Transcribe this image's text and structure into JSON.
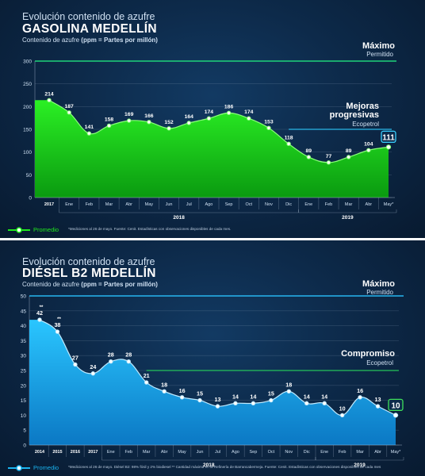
{
  "colors": {
    "gasoline": "#1fe81c",
    "diesel": "#1ab4f0",
    "max_line": "#1fd47a",
    "target_line": "#2ab6e6",
    "diesel_max_line": "#27b6f0",
    "diesel_target_line": "#25c35a"
  },
  "panel1": {
    "eyebrow": "Evolución contenido de azufre",
    "headline": "GASOLINA MEDELLÍN",
    "subhead_prefix": "Contenido de azufre ",
    "subhead_bold": "(ppm = Partes por millón)",
    "max_label": "Máximo",
    "max_sub": "Permitido",
    "annot_title_1": "Mejoras",
    "annot_title_2": "progresivas",
    "annot_sub": "Ecopetrol",
    "legend_label": "Promedio",
    "note": "*Mediciones al 26 de mayo.  Fuente: Cenit. Estadísticas con observaciones disponibles de cada mes."
  },
  "panel2": {
    "eyebrow": "Evolución contenido de azufre",
    "headline": "DIÉSEL B2 MEDELLÍN",
    "subhead_prefix": "Contenido de azufre ",
    "subhead_bold": "(ppm = Partes por millón)",
    "max_label": "Máximo",
    "max_sub": "Permitido",
    "annot_title": "Compromiso",
    "annot_sub": "Ecopetrol",
    "legend_label": "Promedio",
    "note": "*Mediciones al 26 de mayo.  Diésel B2: 98% fósil y 2% biodiesel  ** Cantidad máxima en la Refinería de Barrancabermeja. Fuente: Cenit. Estadísticas con observaciones disponibles de cada mes"
  },
  "chart_data": [
    {
      "type": "area",
      "title": "GASOLINA MEDELLÍN",
      "ylabel": "Contenido de azufre (ppm = Partes por millón)",
      "ylim": [
        0,
        300
      ],
      "yticks": [
        "0",
        "50",
        "100",
        "150",
        "200",
        "250",
        "300"
      ],
      "categories": [
        "2017",
        "Ene",
        "Feb",
        "Mar",
        "Abr",
        "May",
        "Jun",
        "Jul",
        "Ago",
        "Sep",
        "Oct",
        "Nov",
        "Dic",
        "Ene",
        "Feb",
        "Mar",
        "Abr",
        "May*"
      ],
      "year_groups": [
        {
          "label": "2018",
          "from": 1,
          "to": 12
        },
        {
          "label": "2019",
          "from": 13,
          "to": 17
        }
      ],
      "series": [
        {
          "name": "Promedio",
          "values": [
            214,
            187,
            141,
            158,
            169,
            166,
            152,
            164,
            174,
            186,
            174,
            153,
            118,
            89,
            77,
            89,
            104,
            111
          ]
        }
      ],
      "value_labels": [
        "214",
        "187",
        "141",
        "158",
        "169",
        "166",
        "152",
        "164",
        "174",
        "186",
        "174",
        "153",
        "118",
        "89",
        "77",
        "89",
        "104",
        "111"
      ],
      "reference_lines": [
        {
          "label": "Máximo Permitido",
          "value": 300,
          "from_index": 0,
          "to_index": 17
        },
        {
          "label": "Mejoras progresivas Ecopetrol",
          "value": 150,
          "from_index": 12,
          "to_index": 17
        }
      ],
      "highlight_last": true,
      "grid": true
    },
    {
      "type": "area",
      "title": "DIÉSEL B2 MEDELLÍN",
      "ylabel": "Contenido de azufre (ppm = Partes por millón)",
      "ylim": [
        0,
        50
      ],
      "yticks": [
        "0",
        "5",
        "10",
        "15",
        "20",
        "25",
        "30",
        "35",
        "40",
        "45",
        "50"
      ],
      "categories": [
        "2014",
        "2015",
        "2016",
        "2017",
        "Ene",
        "Feb",
        "Mar",
        "Abr",
        "May",
        "Jun",
        "Jul",
        "Ago",
        "Sep",
        "Oct",
        "Nov",
        "Dic",
        "Ene",
        "Feb",
        "Mar",
        "Abr",
        "May*"
      ],
      "year_groups": [
        {
          "label": "2018",
          "from": 4,
          "to": 15
        },
        {
          "label": "2019",
          "from": 16,
          "to": 20
        }
      ],
      "series": [
        {
          "name": "Promedio",
          "values": [
            42,
            38,
            27,
            24,
            28,
            28,
            21,
            18,
            16,
            15,
            13,
            14,
            14,
            15,
            18,
            14,
            14,
            10,
            16,
            13,
            10
          ]
        }
      ],
      "value_labels": [
        "42",
        "38",
        "27",
        "24",
        "28",
        "28",
        "21",
        "18",
        "16",
        "15",
        "13",
        "14",
        "14",
        "15",
        "18",
        "14",
        "14",
        "10",
        "16",
        "13",
        "10"
      ],
      "value_label_marks": [
        "**",
        "**",
        "",
        "",
        "",
        "",
        "",
        "",
        "",
        "",
        "",
        "",
        "",
        "",
        "",
        "",
        "",
        "",
        "",
        "",
        ""
      ],
      "reference_lines": [
        {
          "label": "Máximo Permitido",
          "value": 50,
          "from_index": 0,
          "to_index": 20
        },
        {
          "label": "Compromiso Ecopetrol",
          "value": 25,
          "from_index": 6,
          "to_index": 20
        }
      ],
      "highlight_last": true,
      "grid": true
    }
  ]
}
